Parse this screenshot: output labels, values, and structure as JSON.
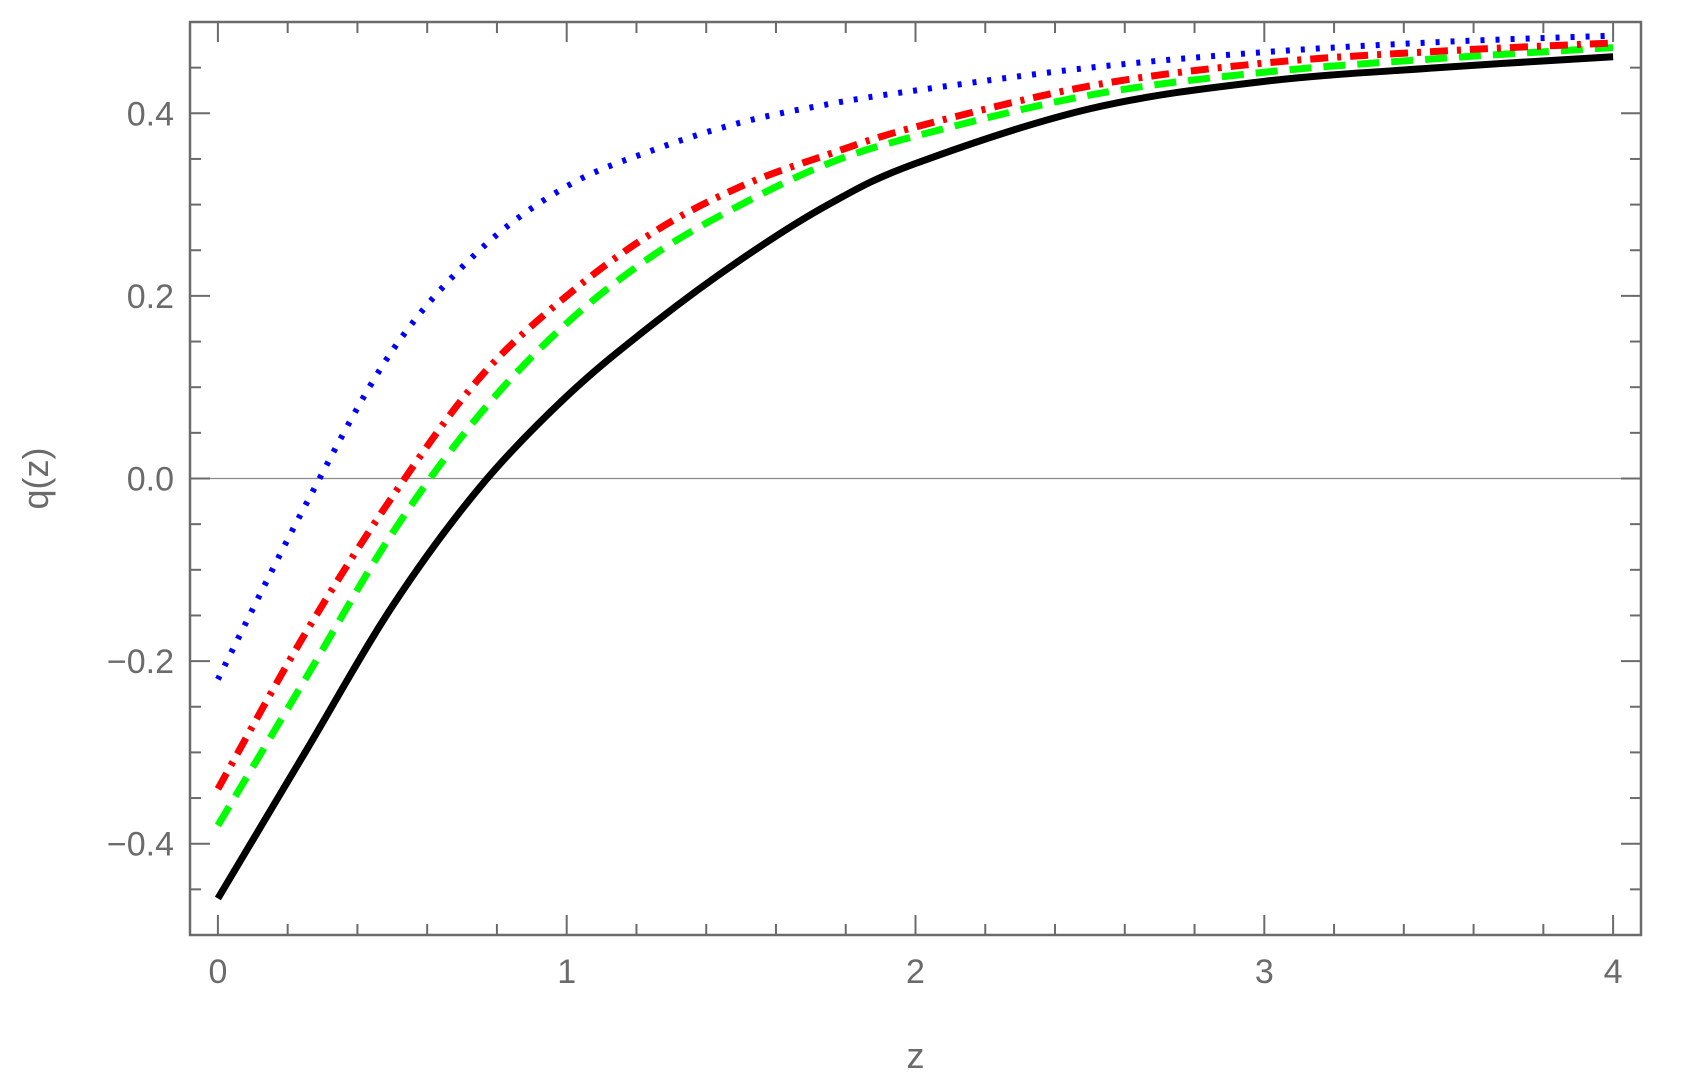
{
  "chart_data": {
    "type": "line",
    "xlabel": "z",
    "ylabel": "q(z)",
    "xlim": [
      -0.08,
      4.08
    ],
    "ylim": [
      -0.5,
      0.5
    ],
    "x_ticks": [
      {
        "value": 0,
        "label": "0"
      },
      {
        "value": 1,
        "label": "1"
      },
      {
        "value": 2,
        "label": "2"
      },
      {
        "value": 3,
        "label": "3"
      },
      {
        "value": 4,
        "label": "4"
      }
    ],
    "y_ticks": [
      {
        "value": -0.4,
        "label": "−0.4"
      },
      {
        "value": -0.2,
        "label": "−0.2"
      },
      {
        "value": 0.0,
        "label": "0.0"
      },
      {
        "value": 0.2,
        "label": "0.2"
      },
      {
        "value": 0.4,
        "label": "0.4"
      }
    ],
    "zero_line": true,
    "grid": false,
    "x": [
      0,
      0.25,
      0.5,
      0.75,
      1.0,
      1.25,
      1.5,
      1.75,
      2.0,
      2.5,
      3.0,
      3.5,
      4.0
    ],
    "series": [
      {
        "color": "#000000",
        "style": "solid",
        "values": [
          -0.46,
          -0.3,
          -0.14,
          -0.01,
          0.09,
          0.17,
          0.24,
          0.3,
          0.345,
          0.405,
          0.435,
          0.45,
          0.462
        ]
      },
      {
        "color": "#00ff00",
        "style": "dashed",
        "values": [
          -0.38,
          -0.22,
          -0.06,
          0.07,
          0.17,
          0.245,
          0.3,
          0.345,
          0.375,
          0.42,
          0.445,
          0.46,
          0.472
        ]
      },
      {
        "color": "#ff0000",
        "style": "dashdot",
        "values": [
          -0.34,
          -0.17,
          -0.02,
          0.11,
          0.2,
          0.27,
          0.32,
          0.355,
          0.385,
          0.43,
          0.455,
          0.468,
          0.477
        ]
      },
      {
        "color": "#0000ff",
        "style": "dotted",
        "values": [
          -0.22,
          -0.03,
          0.14,
          0.25,
          0.32,
          0.36,
          0.39,
          0.41,
          0.425,
          0.45,
          0.467,
          0.478,
          0.485
        ]
      }
    ]
  }
}
